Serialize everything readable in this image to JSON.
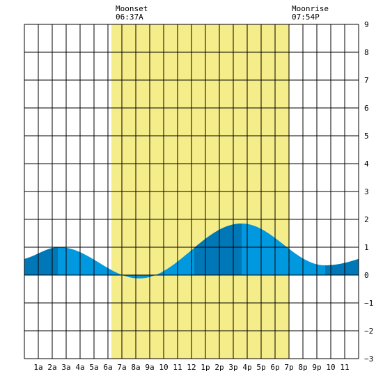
{
  "header": {
    "moonset_label": "Moonset",
    "moonset_time": "06:37A",
    "moonrise_label": "Moonrise",
    "moonrise_time": "07:54P"
  },
  "chart_data": {
    "type": "area",
    "title": "",
    "xlabel": "",
    "ylabel": "",
    "xlim": [
      -1,
      23
    ],
    "ylim": [
      -3,
      9
    ],
    "y_ticks": [
      9,
      8,
      7,
      6,
      5,
      4,
      3,
      2,
      1,
      0,
      -1,
      -2,
      -3
    ],
    "x_ticks": [
      {
        "x": 0,
        "label": "1a"
      },
      {
        "x": 1,
        "label": "2a"
      },
      {
        "x": 2,
        "label": "3a"
      },
      {
        "x": 3,
        "label": "4a"
      },
      {
        "x": 4,
        "label": "5a"
      },
      {
        "x": 5,
        "label": "6a"
      },
      {
        "x": 6,
        "label": "7a"
      },
      {
        "x": 7,
        "label": "8a"
      },
      {
        "x": 8,
        "label": "9a"
      },
      {
        "x": 9,
        "label": "10"
      },
      {
        "x": 10,
        "label": "11"
      },
      {
        "x": 11,
        "label": "12"
      },
      {
        "x": 12,
        "label": "1p"
      },
      {
        "x": 13,
        "label": "2p"
      },
      {
        "x": 14,
        "label": "3p"
      },
      {
        "x": 15,
        "label": "4p"
      },
      {
        "x": 16,
        "label": "5p"
      },
      {
        "x": 17,
        "label": "6p"
      },
      {
        "x": 18,
        "label": "7p"
      },
      {
        "x": 19,
        "label": "8p"
      },
      {
        "x": 20,
        "label": "9p"
      },
      {
        "x": 21,
        "label": "10"
      },
      {
        "x": 22,
        "label": "11"
      }
    ],
    "grid": true,
    "daylight_span": [
      5.25,
      18.0
    ],
    "tide_extrema": [
      {
        "type": "low",
        "hour": -1.5,
        "value": 0.55
      },
      {
        "type": "high",
        "hour": 1.5,
        "value": 1.0
      },
      {
        "type": "low",
        "hour": 7.25,
        "value": -0.12
      },
      {
        "type": "high",
        "hour": 14.6,
        "value": 1.85
      },
      {
        "type": "low",
        "hour": 20.6,
        "value": 0.35
      },
      {
        "type": "high",
        "hour": 26.5,
        "value": 1.0
      }
    ],
    "dark_bands": [
      {
        "from": -1,
        "to": 1.4
      },
      {
        "from": 11.2,
        "to": 14.6
      },
      {
        "from": 20.6,
        "to": 23
      }
    ],
    "colors": {
      "daylight": "#f5ec8a",
      "tide_light": "#0099e0",
      "tide_dark": "#0077b6",
      "grid": "#000000",
      "background": "#ffffff"
    }
  }
}
